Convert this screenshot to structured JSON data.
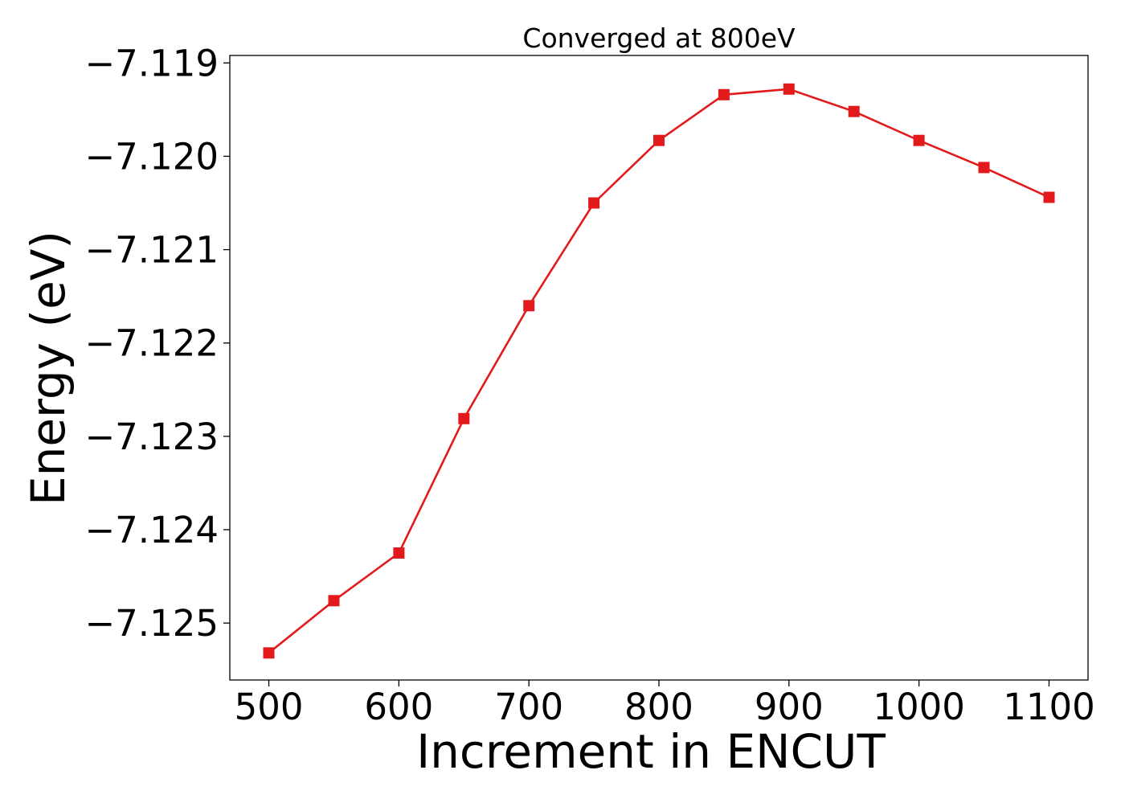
{
  "chart_data": {
    "type": "line",
    "title": "Converged at 800eV",
    "xlabel": "Increment in ENCUT",
    "ylabel": "Energy (eV)",
    "xlim": [
      470,
      1130
    ],
    "ylim": [
      -7.12561,
      -7.11892
    ],
    "xticks": [
      500,
      600,
      700,
      800,
      900,
      1000,
      1100
    ],
    "xtick_labels": [
      "500",
      "600",
      "700",
      "800",
      "900",
      "1000",
      "1100"
    ],
    "yticks": [
      -7.125,
      -7.124,
      -7.123,
      -7.122,
      -7.121,
      -7.12,
      -7.119
    ],
    "ytick_labels": [
      "−7.125",
      "−7.124",
      "−7.123",
      "−7.122",
      "−7.121",
      "−7.120",
      "−7.119"
    ],
    "grid": false,
    "marker": "square",
    "series": [
      {
        "color": "#e31a1c",
        "x": [
          500,
          550,
          600,
          650,
          700,
          750,
          800,
          850,
          900,
          950,
          1000,
          1050,
          1100
        ],
        "y": [
          -7.12532,
          -7.12476,
          -7.12425,
          -7.12281,
          -7.1216,
          -7.1205,
          -7.11983,
          -7.11934,
          -7.11928,
          -7.11952,
          -7.11983,
          -7.12012,
          -7.12044
        ]
      }
    ]
  }
}
